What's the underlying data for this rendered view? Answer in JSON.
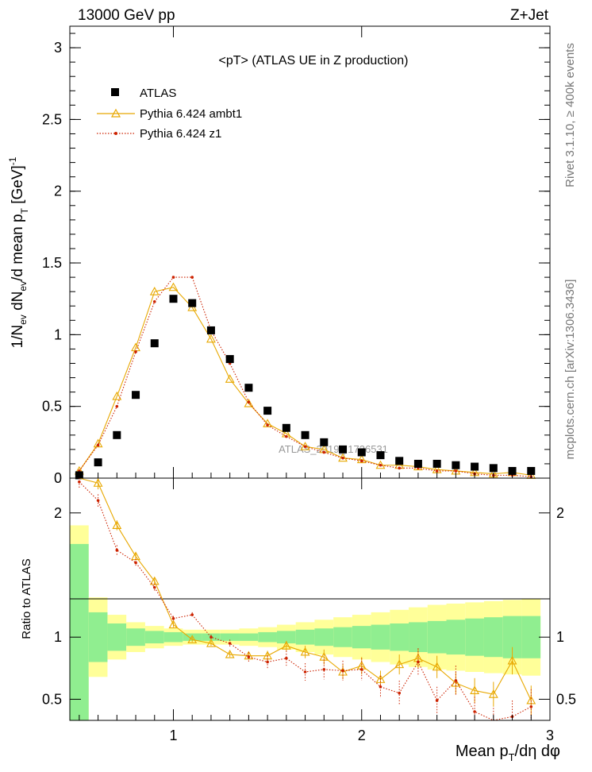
{
  "header": {
    "left": "13000 GeV pp",
    "right": "Z+Jet"
  },
  "side_labels": {
    "rivet": "Rivet 3.1.10, ≥ 400k events",
    "mcplots": "mcplots.cern.ch [arXiv:1306.3436]"
  },
  "watermark": "ATLAS_2019_I1736531",
  "chart_data": [
    {
      "type": "scatter",
      "title": "<pT> (ATLAS UE in Z production)",
      "ylabel": "1/N_ev dN_ev/d mean p_T [GeV]^-1",
      "xlim": [
        0.45,
        3.0
      ],
      "ylim": [
        0,
        3.15
      ],
      "yticks": [
        0,
        0.5,
        1,
        1.5,
        2,
        2.5,
        3
      ],
      "ytick_labels": [
        "0",
        "0.5",
        "1",
        "1.5",
        "2",
        "2.5",
        "3"
      ],
      "legend_position": "top-left",
      "x": [
        0.5,
        0.6,
        0.7,
        0.8,
        0.9,
        1.0,
        1.1,
        1.2,
        1.3,
        1.4,
        1.5,
        1.6,
        1.7,
        1.8,
        1.9,
        2.0,
        2.1,
        2.2,
        2.3,
        2.4,
        2.5,
        2.6,
        2.7,
        2.8,
        2.9
      ],
      "series": [
        {
          "name": "ATLAS",
          "color": "#000000",
          "marker": "square",
          "values": [
            0.02,
            0.11,
            0.3,
            0.58,
            0.94,
            1.25,
            1.22,
            1.03,
            0.83,
            0.63,
            0.47,
            0.35,
            0.3,
            0.25,
            0.2,
            0.18,
            0.16,
            0.12,
            0.1,
            0.1,
            0.09,
            0.08,
            0.07,
            0.05,
            0.05
          ]
        },
        {
          "name": "Pythia 6.424 ambt1",
          "color": "#e8a800",
          "marker": "triangle",
          "line": "solid",
          "values": [
            0.05,
            0.24,
            0.57,
            0.91,
            1.3,
            1.33,
            1.19,
            0.97,
            0.69,
            0.52,
            0.38,
            0.31,
            0.22,
            0.2,
            0.14,
            0.13,
            0.09,
            0.09,
            0.08,
            0.06,
            0.05,
            0.04,
            0.03,
            0.04,
            0.02
          ]
        },
        {
          "name": "Pythia 6.424 z1",
          "color": "#cc2200",
          "marker": "dot",
          "line": "dotted",
          "values": [
            0.05,
            0.23,
            0.5,
            0.88,
            1.23,
            1.4,
            1.4,
            1.03,
            0.8,
            0.53,
            0.37,
            0.29,
            0.22,
            0.18,
            0.14,
            0.12,
            0.09,
            0.07,
            0.07,
            0.05,
            0.05,
            0.03,
            0.02,
            0.02,
            0.01
          ]
        }
      ]
    },
    {
      "type": "line",
      "ylabel": "Ratio to ATLAS",
      "xlabel": "Mean p_T/dη dφ",
      "xlim": [
        0.45,
        3.0
      ],
      "ylim": [
        0.33,
        2.28
      ],
      "xticks": [
        1,
        2,
        3
      ],
      "xtick_labels": [
        "1",
        "2",
        "3"
      ],
      "yticks": [
        0.5,
        1,
        2
      ],
      "ytick_labels": [
        "0.5",
        "1",
        "2"
      ],
      "reference_line": 1,
      "x": [
        0.5,
        0.6,
        0.7,
        0.8,
        0.9,
        1.0,
        1.1,
        1.2,
        1.3,
        1.4,
        1.5,
        1.6,
        1.7,
        1.8,
        1.9,
        2.0,
        2.1,
        2.2,
        2.3,
        2.4,
        2.5,
        2.6,
        2.7,
        2.8,
        2.9
      ],
      "uncertainty_bands": {
        "green_halfwidth": [
          0.75,
          0.2,
          0.11,
          0.07,
          0.05,
          0.04,
          0.03,
          0.03,
          0.03,
          0.03,
          0.04,
          0.05,
          0.06,
          0.07,
          0.08,
          0.09,
          0.1,
          0.11,
          0.12,
          0.13,
          0.14,
          0.15,
          0.16,
          0.17,
          0.17
        ],
        "yellow_halfwidth": [
          0.9,
          0.32,
          0.18,
          0.12,
          0.09,
          0.07,
          0.06,
          0.06,
          0.06,
          0.07,
          0.08,
          0.1,
          0.12,
          0.14,
          0.16,
          0.18,
          0.2,
          0.22,
          0.24,
          0.26,
          0.27,
          0.28,
          0.29,
          0.3,
          0.31
        ],
        "green_color": "#90ee90",
        "yellow_color": "#ffff99"
      },
      "series": [
        {
          "name": "Pythia 6.424 ambt1",
          "color": "#e8a800",
          "marker": "triangle",
          "line": "solid",
          "values": [
            2.7,
            2.24,
            1.9,
            1.65,
            1.45,
            1.1,
            0.98,
            0.95,
            0.86,
            0.85,
            0.85,
            0.93,
            0.88,
            0.84,
            0.72,
            0.77,
            0.66,
            0.78,
            0.83,
            0.76,
            0.63,
            0.57,
            0.54,
            0.81,
            0.49
          ],
          "errors": [
            0.2,
            0.05,
            0.04,
            0.03,
            0.03,
            0.02,
            0.02,
            0.02,
            0.02,
            0.03,
            0.04,
            0.04,
            0.05,
            0.06,
            0.06,
            0.07,
            0.07,
            0.08,
            0.08,
            0.09,
            0.09,
            0.1,
            0.1,
            0.11,
            0.12
          ]
        },
        {
          "name": "Pythia 6.424 z1",
          "color": "#cc2200",
          "marker": "dot",
          "line": "dotted",
          "values": [
            2.25,
            2.1,
            1.7,
            1.6,
            1.4,
            1.15,
            1.18,
            1.0,
            0.95,
            0.84,
            0.8,
            0.83,
            0.72,
            0.74,
            0.73,
            0.74,
            0.6,
            0.55,
            0.8,
            0.49,
            0.65,
            0.4,
            0.3,
            0.36,
            0.44
          ],
          "errors": [
            0.05,
            0.05,
            0.04,
            0.03,
            0.03,
            0.02,
            0.02,
            0.02,
            0.03,
            0.04,
            0.05,
            0.06,
            0.07,
            0.08,
            0.08,
            0.09,
            0.09,
            0.1,
            0.11,
            0.11,
            0.12,
            0.12,
            0.13,
            0.13,
            0.14
          ]
        }
      ]
    }
  ]
}
